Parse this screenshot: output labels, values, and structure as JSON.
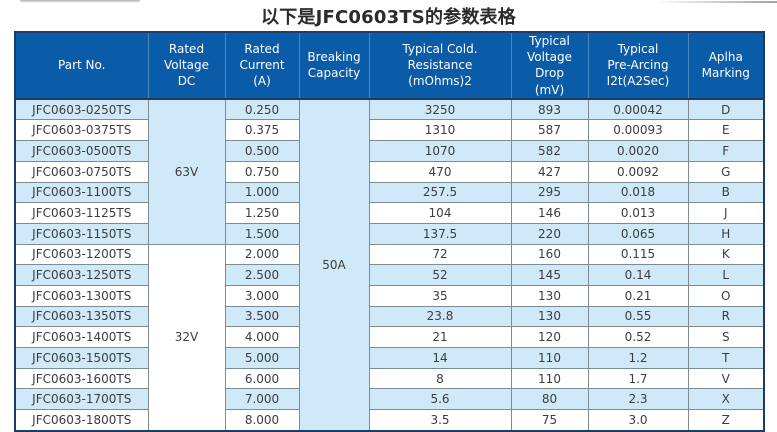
{
  "page": {
    "title": "以下是JFC0603TS的参数表格"
  },
  "colors": {
    "header_bg": "#0b5ca8",
    "header_divider": "#4585bd",
    "header_text": "#ffffff",
    "border_dark": "#1c3c68",
    "grid": "#7e8b91",
    "stripe": "#cfe9f9",
    "cell_text": "#3d3d3d"
  },
  "table": {
    "headers": [
      "Part No.",
      "Rated\nVoltage\nDC",
      "Rated\nCurrent\n(A)",
      "Breaking\nCapacity",
      "Typical Cold.\nResistance\n(mOhms)2",
      "Typical\nVoltage Drop\n(mV)",
      "Typical\nPre-Arcing\nI2t(A2Sec)",
      "Aplha\nMarking"
    ],
    "voltage_groups": [
      {
        "label": "63V",
        "row_span": 7,
        "striped": true
      },
      {
        "label": "32V",
        "row_span": 9,
        "striped": false
      }
    ],
    "breaking_capacity": {
      "label": "50A",
      "row_span": 16,
      "striped": true
    },
    "rows": [
      {
        "part": "JFC0603-0250TS",
        "current": "0.250",
        "cold_resistance": "3250",
        "voltage_drop": "893",
        "i2t": "0.00042",
        "marking": "D"
      },
      {
        "part": "JFC0603-0375TS",
        "current": "0.375",
        "cold_resistance": "1310",
        "voltage_drop": "587",
        "i2t": "0.00093",
        "marking": "E"
      },
      {
        "part": "JFC0603-0500TS",
        "current": "0.500",
        "cold_resistance": "1070",
        "voltage_drop": "582",
        "i2t": "0.0020",
        "marking": "F"
      },
      {
        "part": "JFC0603-0750TS",
        "current": "0.750",
        "cold_resistance": "470",
        "voltage_drop": "427",
        "i2t": "0.0092",
        "marking": "G"
      },
      {
        "part": "JFC0603-1100TS",
        "current": "1.000",
        "cold_resistance": "257.5",
        "voltage_drop": "295",
        "i2t": "0.018",
        "marking": "B"
      },
      {
        "part": "JFC0603-1125TS",
        "current": "1.250",
        "cold_resistance": "104",
        "voltage_drop": "146",
        "i2t": "0.013",
        "marking": "J"
      },
      {
        "part": "JFC0603-1150TS",
        "current": "1.500",
        "cold_resistance": "137.5",
        "voltage_drop": "220",
        "i2t": "0.065",
        "marking": "H"
      },
      {
        "part": "JFC0603-1200TS",
        "current": "2.000",
        "cold_resistance": "72",
        "voltage_drop": "160",
        "i2t": "0.115",
        "marking": "K"
      },
      {
        "part": "JFC0603-1250TS",
        "current": "2.500",
        "cold_resistance": "52",
        "voltage_drop": "145",
        "i2t": "0.14",
        "marking": "L"
      },
      {
        "part": "JFC0603-1300TS",
        "current": "3.000",
        "cold_resistance": "35",
        "voltage_drop": "130",
        "i2t": "0.21",
        "marking": "O"
      },
      {
        "part": "JFC0603-1350TS",
        "current": "3.500",
        "cold_resistance": "23.8",
        "voltage_drop": "130",
        "i2t": "0.55",
        "marking": "R"
      },
      {
        "part": "JFC0603-1400TS",
        "current": "4.000",
        "cold_resistance": "21",
        "voltage_drop": "120",
        "i2t": "0.52",
        "marking": "S"
      },
      {
        "part": "JFC0603-1500TS",
        "current": "5.000",
        "cold_resistance": "14",
        "voltage_drop": "110",
        "i2t": "1.2",
        "marking": "T"
      },
      {
        "part": "JFC0603-1600TS",
        "current": "6.000",
        "cold_resistance": "8",
        "voltage_drop": "110",
        "i2t": "1.7",
        "marking": "V"
      },
      {
        "part": "JFC0603-1700TS",
        "current": "7.000",
        "cold_resistance": "5.6",
        "voltage_drop": "80",
        "i2t": "2.3",
        "marking": "X"
      },
      {
        "part": "JFC0603-1800TS",
        "current": "8.000",
        "cold_resistance": "3.5",
        "voltage_drop": "75",
        "i2t": "3.0",
        "marking": "Z"
      }
    ]
  }
}
